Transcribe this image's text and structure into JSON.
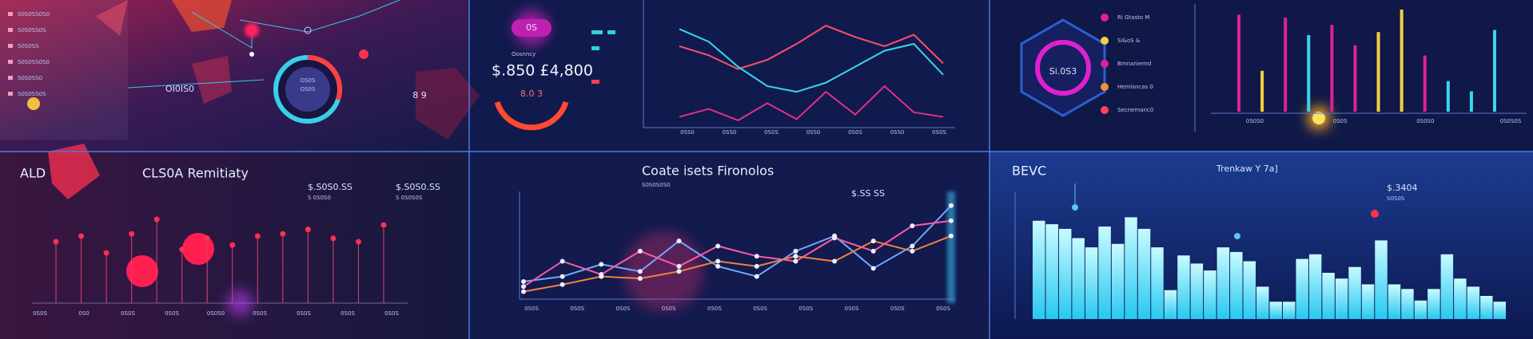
{
  "top_left": {
    "list": [
      "S0S0SS0S0",
      "S0S0SS0S",
      "S0S0SS",
      "S0S0SS0S0",
      "S0S0SS0",
      "S0S0SS0S"
    ],
    "label": "OI0IS0",
    "gauge": "OS0S",
    "side": "8 9"
  },
  "top_middle": {
    "badge": "0S",
    "caption": "Oosnncy",
    "amount": "$.850 £4,800",
    "gauge": "8.0 3",
    "x_labels": [
      "0SS0",
      "0SS0",
      "0S0S",
      "0SS0",
      "0S0S",
      "0SS0",
      "0S0S"
    ],
    "ylim": [
      0,
      100
    ],
    "lines": [
      {
        "color": "#ff4d6d",
        "values": [
          70,
          62,
          50,
          58,
          72,
          88,
          78,
          70,
          80,
          55
        ]
      },
      {
        "color": "#38d6f0",
        "values": [
          85,
          74,
          52,
          35,
          30,
          38,
          52,
          66,
          72,
          45
        ]
      },
      {
        "color": "#e0308a",
        "values": [
          8,
          15,
          5,
          20,
          6,
          30,
          10,
          35,
          12,
          8
        ]
      }
    ]
  },
  "top_right": {
    "hex": "Si.0S3",
    "legend": [
      {
        "label": "Ri Gtasto M",
        "color": "#e0209a"
      },
      {
        "label": "Si&oS &",
        "color": "#f0d040"
      },
      {
        "label": "Bmnaniemd",
        "color": "#e0209a"
      },
      {
        "label": "Hemisncas 0",
        "color": "#f09030"
      },
      {
        "label": "Secnemanc0",
        "color": "#ff4060"
      }
    ],
    "ylim": [
      0,
      100
    ],
    "bars": [
      {
        "value": 95,
        "color": "#e0209a"
      },
      {
        "value": 40,
        "color": "#f0d040"
      },
      {
        "value": 92,
        "color": "#e0209a"
      },
      {
        "value": 75,
        "color": "#38d6f0"
      },
      {
        "value": 85,
        "color": "#e0209a"
      },
      {
        "value": 65,
        "color": "#e0209a"
      },
      {
        "value": 78,
        "color": "#f0d040"
      },
      {
        "value": 100,
        "color": "#f0d040"
      },
      {
        "value": 55,
        "color": "#e0209a"
      },
      {
        "value": 30,
        "color": "#38d6f0"
      },
      {
        "value": 20,
        "color": "#38d6f0"
      },
      {
        "value": 80,
        "color": "#38d6f0"
      }
    ],
    "x_labels": [
      "0S0S0",
      "0S0S",
      "0S0S0",
      "0S0S0S"
    ]
  },
  "bottom_left": {
    "title": "ALD",
    "subtitle": "CLS0A Remitiaty",
    "stats": [
      {
        "value": "$.S0S0.SS",
        "caption": "S 0S0S0"
      },
      {
        "value": "$.S0S0.SS",
        "caption": "S 0S0S0S"
      }
    ],
    "ylim": [
      0,
      100
    ],
    "stems": [
      55,
      60,
      45,
      62,
      75,
      48,
      58,
      52,
      60,
      62,
      66,
      58,
      55,
      70
    ],
    "x_labels": [
      "0S0S",
      "0S0",
      "0S0S",
      "0S0S",
      "0S0S0",
      "0S0S",
      "0S0S",
      "0S0S",
      "0S0S"
    ]
  },
  "bottom_middle": {
    "title": "Coate isets Fironolos",
    "caption": "S0S0S0S0",
    "value": "$.SS SS",
    "ylim": [
      0,
      100
    ],
    "lines": [
      {
        "color": "#6fa8ff",
        "values": [
          15,
          20,
          32,
          25,
          55,
          30,
          20,
          45,
          60,
          28,
          50,
          90
        ]
      },
      {
        "color": "#ff5aa8",
        "values": [
          10,
          35,
          22,
          45,
          30,
          50,
          40,
          35,
          58,
          45,
          70,
          75
        ]
      },
      {
        "color": "#f08040",
        "values": [
          5,
          12,
          20,
          18,
          25,
          35,
          30,
          40,
          35,
          55,
          45,
          60
        ]
      }
    ],
    "x_labels": [
      "0S0S",
      "0S0S",
      "0S0S",
      "0S0S",
      "0S0S",
      "0S0S",
      "0S0S",
      "0S0S",
      "0S0S",
      "0S0S"
    ]
  },
  "bottom_right": {
    "title": "BEVC",
    "subtitle": "Trenkaw Y 7a]",
    "value": "$.3404",
    "caption": "S0S0S",
    "ylim": [
      0,
      100
    ],
    "bars": [
      85,
      82,
      78,
      70,
      62,
      80,
      65,
      88,
      78,
      62,
      25,
      55,
      48,
      42,
      62,
      58,
      50,
      28,
      15,
      15,
      52,
      56,
      40,
      35,
      45,
      30,
      68,
      30,
      26,
      16,
      26,
      56,
      35,
      28,
      20,
      15
    ]
  }
}
